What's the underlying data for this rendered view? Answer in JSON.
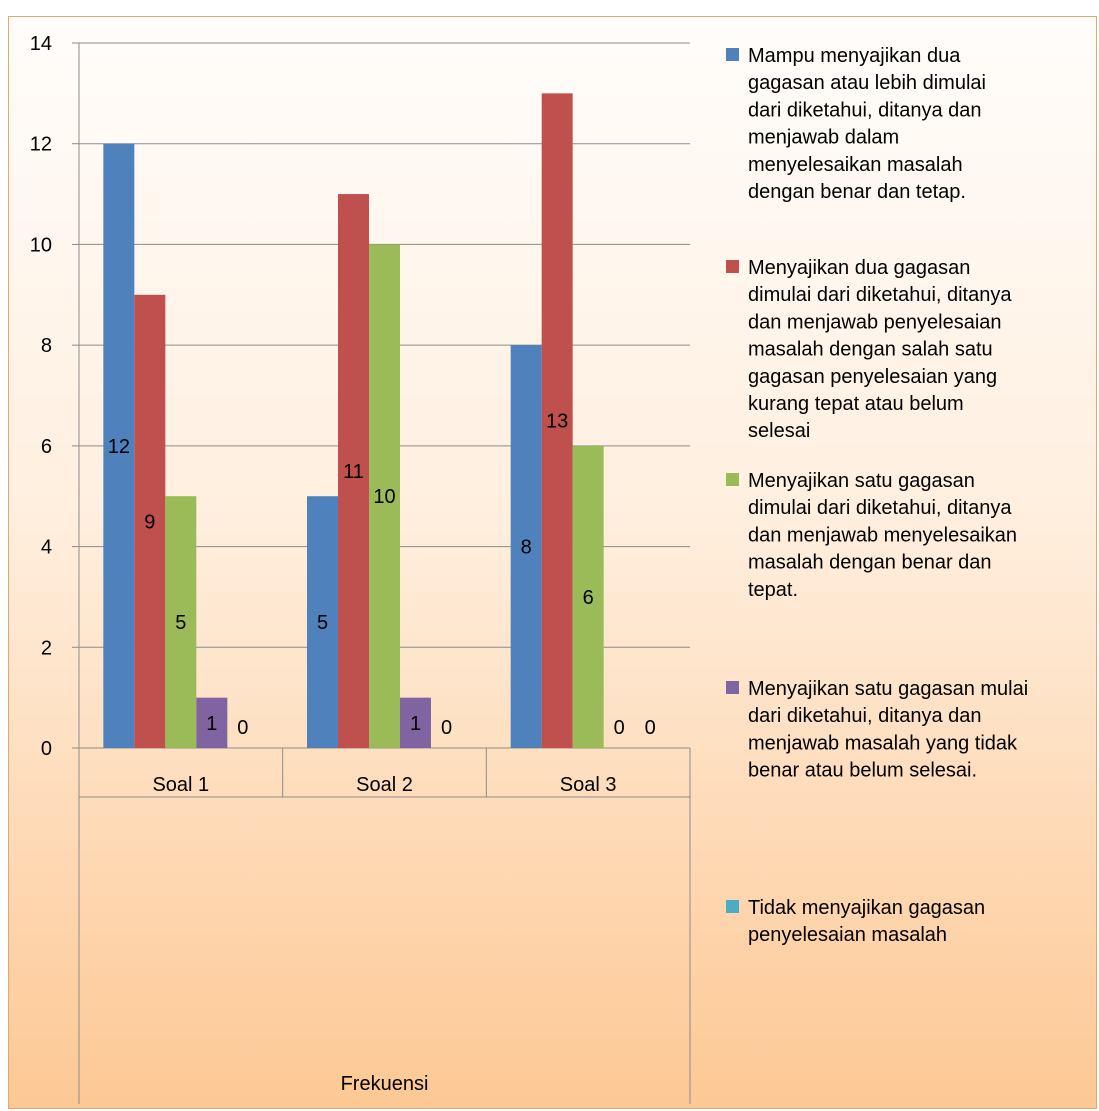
{
  "chart_data": {
    "type": "bar",
    "categories": [
      "Soal 1",
      "Soal 2",
      "Soal 3"
    ],
    "group_label": "Frekuensi",
    "ylim": [
      0,
      14
    ],
    "y_ticks": [
      "0",
      "2",
      "4",
      "6",
      "8",
      "10",
      "12",
      "14"
    ],
    "grid": true,
    "legend_position": "right",
    "series": [
      {
        "name": "Mampu menyajikan dua gagasan atau lebih  dimulai dari diketahui, ditanya dan menjawab dalam menyelesaikan masalah dengan benar dan tetap.",
        "legend_lines": [
          "Mampu menyajikan dua",
          "gagasan atau lebih  dimulai",
          "dari diketahui, ditanya dan",
          "menjawab dalam",
          "menyelesaikan masalah",
          "dengan benar dan tetap."
        ],
        "color": "#4f81bd",
        "values": [
          12,
          5,
          8
        ],
        "labels": [
          "12",
          "5",
          "8"
        ]
      },
      {
        "name": "Menyajikan dua gagasan dimulai dari diketahui, ditanya dan menjawab penyelesaian masalah dengan salah satu gagasan penyelesaian yang kurang tepat atau belum selesai",
        "legend_lines": [
          "Menyajikan dua gagasan",
          "dimulai dari diketahui, ditanya",
          "dan menjawab penyelesaian",
          "masalah dengan salah satu",
          "gagasan penyelesaian yang",
          "kurang tepat atau belum",
          "selesai"
        ],
        "color": "#c0504d",
        "values": [
          9,
          11,
          13
        ],
        "labels": [
          "9",
          "11",
          "13"
        ]
      },
      {
        "name": "Menyajikan satu gagasan dimulai dari diketahui, ditanya dan menjawab menyelesaikan masalah dengan benar dan tepat.",
        "legend_lines": [
          "Menyajikan satu gagasan",
          "dimulai dari diketahui, ditanya",
          "dan menjawab menyelesaikan",
          "masalah dengan benar dan",
          "tepat."
        ],
        "color": "#9bbb59",
        "values": [
          5,
          10,
          6
        ],
        "labels": [
          "5",
          "10",
          "6"
        ]
      },
      {
        "name": "Menyajikan satu gagasan mulai dari diketahui, ditanya dan menjawab masalah yang tidak benar atau belum selesai.",
        "legend_lines": [
          "Menyajikan satu gagasan mulai",
          "dari diketahui, ditanya dan",
          "menjawab masalah yang tidak",
          "benar atau belum selesai."
        ],
        "color": "#8064a2",
        "values": [
          1,
          1,
          0
        ],
        "labels": [
          "1",
          "1",
          "0"
        ]
      },
      {
        "name": "Tidak menyajikan gagasan penyelesaian masalah",
        "legend_lines": [
          "Tidak menyajikan gagasan",
          "penyelesaian masalah"
        ],
        "color": "#4bacc6",
        "values": [
          0,
          0,
          0
        ],
        "labels": [
          "0",
          "0",
          "0"
        ]
      }
    ]
  }
}
